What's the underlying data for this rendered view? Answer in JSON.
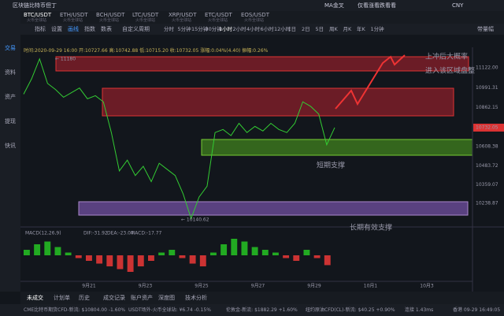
{
  "app_title": "区块链比特币但丁",
  "top_right": [
    "MA金叉",
    "仅看涨看跌看看",
    "CNY"
  ],
  "tabs": [
    {
      "pair": "BTC/USDT",
      "source": "火币全球站"
    },
    {
      "pair": "ETH/USDT",
      "source": "火币全球站"
    },
    {
      "pair": "BCH/USDT",
      "source": "火币全球站"
    },
    {
      "pair": "LTC/USDT",
      "source": "火币全球站"
    },
    {
      "pair": "XRP/USDT",
      "source": "火币全球站"
    },
    {
      "pair": "ETC/USDT",
      "source": "火币全球站"
    },
    {
      "pair": "EOS/USDT",
      "source": "火币全球站"
    }
  ],
  "toolbar": [
    "指标",
    "设置",
    "画线",
    "指数",
    "数表",
    "自定义周期"
  ],
  "periods": [
    "分时",
    "5分钟",
    "15分钟",
    "30分钟",
    "1小时",
    "2小时",
    "4小时",
    "6小时",
    "12小时",
    "1日",
    "2日",
    "5日",
    "周K",
    "月K",
    "年K",
    "1分钟"
  ],
  "toolbar_right": "带量幅",
  "sidebar": [
    "交易",
    "资料",
    "资产",
    "提现",
    "快讯"
  ],
  "info": "时间:2020-09-29 16:00 开:10727.66 高:10742.88 低:10715.20 收:10732.05 涨幅:0.04%(4.40) 振幅:0.26%",
  "price_axis": {
    "ticks": [
      "11122.00",
      "10991.31",
      "10862.15",
      "10732.05",
      "10608.38",
      "10483.72",
      "10359.07",
      "10238.87"
    ]
  },
  "price_closes": [
    10950,
    11050,
    11180,
    11020,
    10980,
    10930,
    10960,
    10990,
    10920,
    10940,
    10900,
    10700,
    10450,
    10520,
    10420,
    10480,
    10380,
    10500,
    10460,
    10420,
    10300,
    10140,
    10280,
    10350,
    10700,
    10720,
    10680,
    10760,
    10700,
    10740,
    10710,
    10760,
    10720,
    10700,
    10760,
    10900,
    10870,
    10820,
    10620,
    10732
  ],
  "annotations": {
    "high": "← 11180",
    "low": "← 10140.62",
    "note_1": "上冲后大概率",
    "note_2": "进入该区域盘整",
    "short_support": "短期支撑",
    "long_support": "长期有效支撑"
  },
  "macd": {
    "label": "MACD(12,26,9)",
    "dif": "DIF:-31.92",
    "dea": "DEA:-23.04",
    "macd": "MACD:-17.77",
    "histogram": [
      10,
      20,
      25,
      15,
      5,
      -5,
      -10,
      -15,
      -20,
      -25,
      -30,
      -20,
      -10,
      5,
      10,
      -5,
      -15,
      -20,
      5,
      20,
      30,
      25,
      15,
      10,
      5,
      -5,
      -10,
      10,
      -5,
      -17.77
    ]
  },
  "date_axis": [
    "9月21",
    "9月23",
    "9月25",
    "9月27",
    "9月29",
    "10月1",
    "10月3"
  ],
  "bottom_tabs": [
    "未成交",
    "计划单",
    "历史",
    "成交记录",
    "账户资产",
    "深度图",
    "技术分析"
  ],
  "status": [
    "CME比特币期货CFD-新流: $10804.00 -1.60%",
    "USDT场外-火币全球站: ¥6.74 -0.15%",
    "伦敦金-新流: $1882.29 +1.60%",
    "纽约原油CFD(CL)-新流: $40.25 +0.90%",
    "连接 1.43ms",
    "香港 09-29 16:49:05"
  ]
}
